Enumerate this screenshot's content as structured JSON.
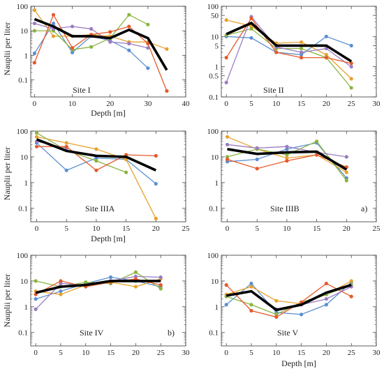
{
  "series_colors": [
    "#5b8fd1",
    "#e9a02c",
    "#8bb43f",
    "#9a7cc2",
    "#e55a2b"
  ],
  "mean_color": "#000000",
  "chart_data": [
    {
      "type": "line",
      "label": "Site I",
      "panel_tag": "",
      "xlabel": "Depth  [m]",
      "ylabel": "Nauplii  per liter",
      "yscale": "log",
      "xlim": [
        -1,
        40
      ],
      "ylim": [
        0.02,
        100
      ],
      "xticks": [
        "0",
        "10",
        "20",
        "30",
        "40"
      ],
      "yticks": [
        "0.1",
        "1",
        "10",
        "100"
      ],
      "series": [
        {
          "x": [
            0,
            5,
            10,
            15,
            20,
            25,
            30
          ],
          "y": [
            1.2,
            20,
            1.3,
            6,
            4,
            1.6,
            0.3
          ]
        },
        {
          "x": [
            0,
            5,
            10,
            15,
            20,
            25,
            30,
            35
          ],
          "y": [
            70,
            6,
            6,
            7,
            6,
            3.5,
            3.5,
            1.8
          ]
        },
        {
          "x": [
            0,
            5,
            10,
            15,
            20,
            25,
            30
          ],
          "y": [
            10,
            10,
            1.7,
            2.2,
            5,
            45,
            18
          ]
        },
        {
          "x": [
            0,
            5,
            10,
            15,
            20,
            25,
            30
          ],
          "y": [
            20,
            12,
            15,
            12,
            3.5,
            3,
            2
          ]
        },
        {
          "x": [
            0,
            5,
            10,
            15,
            20,
            25,
            30,
            35
          ],
          "y": [
            0.5,
            45,
            2,
            7,
            9,
            15,
            3,
            0.035
          ]
        }
      ],
      "mean": {
        "x": [
          0,
          5,
          10,
          15,
          20,
          25,
          30,
          35
        ],
        "y": [
          30,
          15,
          6,
          6,
          5,
          11,
          5,
          0.25
        ]
      }
    },
    {
      "type": "line",
      "label": "Site II",
      "panel_tag": "",
      "xlabel": "",
      "ylabel": "",
      "yscale": "log",
      "xlim": [
        -1,
        30
      ],
      "ylim": [
        0.1,
        100
      ],
      "xticks": [
        "0",
        "5",
        "10",
        "15",
        "20",
        "25",
        "30"
      ],
      "yticks": [
        "0.1",
        "0.5",
        "1",
        "5",
        "10",
        "50",
        "100"
      ],
      "series": [
        {
          "x": [
            0,
            5,
            10,
            15,
            20,
            25
          ],
          "y": [
            10,
            9,
            3,
            2.5,
            10,
            5
          ]
        },
        {
          "x": [
            0,
            5,
            10,
            15,
            20,
            25
          ],
          "y": [
            35,
            22,
            6,
            6.5,
            2.5,
            0.4
          ]
        },
        {
          "x": [
            0,
            5,
            10,
            15,
            20,
            25
          ],
          "y": [
            11,
            18,
            4,
            4,
            2,
            0.2
          ]
        },
        {
          "x": [
            0,
            5,
            10,
            15,
            20,
            25
          ],
          "y": [
            0.3,
            45,
            4.5,
            3,
            4,
            1
          ]
        },
        {
          "x": [
            0,
            5,
            10,
            15,
            20,
            25
          ],
          "y": [
            2,
            40,
            3,
            2,
            2,
            1.3
          ]
        }
      ],
      "mean": {
        "x": [
          0,
          5,
          10,
          15,
          20,
          25
        ],
        "y": [
          12,
          28,
          5,
          5,
          5,
          1.5
        ]
      }
    },
    {
      "type": "line",
      "label": "Site IIIA",
      "panel_tag": "",
      "xlabel": "Depth  [m]",
      "ylabel": "Nauplii  per liter",
      "yscale": "log",
      "xlim": [
        -1,
        25
      ],
      "ylim": [
        0.03,
        100
      ],
      "xticks": [
        "0",
        "5",
        "10",
        "15",
        "20",
        "25"
      ],
      "yticks": [
        "0.1",
        "1",
        "10",
        "100"
      ],
      "series": [
        {
          "x": [
            0,
            5,
            10,
            15,
            20
          ],
          "y": [
            35,
            3,
            9,
            8,
            0.9
          ]
        },
        {
          "x": [
            0,
            5,
            10,
            15,
            20
          ],
          "y": [
            60,
            35,
            20,
            8,
            0.04
          ]
        },
        {
          "x": [
            0,
            5,
            10,
            15
          ],
          "y": [
            85,
            18,
            7,
            2.5
          ]
        },
        {
          "x": [
            0,
            5
          ],
          "y": [
            40,
            22
          ]
        },
        {
          "x": [
            0,
            5,
            10,
            15,
            20
          ],
          "y": [
            25,
            25,
            3,
            12,
            11
          ]
        }
      ],
      "mean": {
        "x": [
          0,
          5,
          10,
          15,
          20
        ],
        "y": [
          48,
          17,
          11,
          10,
          3
        ]
      }
    },
    {
      "type": "line",
      "label": "Site IIIB",
      "panel_tag": "a)",
      "xlabel": "",
      "ylabel": "",
      "yscale": "log",
      "xlim": [
        -1,
        25
      ],
      "ylim": [
        0.03,
        100
      ],
      "xticks": [
        "0",
        "5",
        "10",
        "15",
        "20",
        "25"
      ],
      "yticks": [
        "0.1",
        "1",
        "10",
        "100"
      ],
      "series": [
        {
          "x": [
            0,
            5,
            10,
            15,
            20
          ],
          "y": [
            6.5,
            8,
            20,
            35,
            1.5
          ]
        },
        {
          "x": [
            0,
            5,
            10,
            15,
            20
          ],
          "y": [
            60,
            20,
            9,
            12,
            2.5
          ]
        },
        {
          "x": [
            0,
            5,
            10,
            15,
            20
          ],
          "y": [
            10,
            20,
            12,
            40,
            1.2
          ]
        },
        {
          "x": [
            0,
            5,
            10,
            15,
            20
          ],
          "y": [
            30,
            22,
            25,
            15,
            10
          ]
        },
        {
          "x": [
            0,
            5,
            10,
            15,
            20
          ],
          "y": [
            8,
            3.5,
            7,
            12,
            4
          ]
        }
      ],
      "mean": {
        "x": [
          0,
          5,
          10,
          15,
          20
        ],
        "y": [
          20,
          13,
          15,
          16,
          3.2
        ]
      }
    },
    {
      "type": "line",
      "label": "Site IV",
      "panel_tag": "b)",
      "xlabel": "",
      "ylabel": "Nauplii  per liter",
      "yscale": "log",
      "xlim": [
        -1,
        30
      ],
      "ylim": [
        0.03,
        100
      ],
      "xticks": [
        "0",
        "5",
        "10",
        "15",
        "20",
        "25",
        "30"
      ],
      "yticks": [
        "0.1",
        "1",
        "10",
        "100"
      ],
      "series": [
        {
          "x": [
            0,
            5,
            10,
            15,
            20,
            25
          ],
          "y": [
            2,
            4,
            8,
            14,
            10,
            6
          ]
        },
        {
          "x": [
            0,
            5,
            10,
            15,
            20,
            25
          ],
          "y": [
            4,
            3,
            7,
            9,
            6,
            12
          ]
        },
        {
          "x": [
            0,
            5,
            10,
            15,
            20,
            25
          ],
          "y": [
            10,
            6,
            9,
            8,
            22,
            5
          ]
        },
        {
          "x": [
            0,
            5,
            10,
            15,
            20,
            25
          ],
          "y": [
            0.8,
            8,
            7,
            10,
            15,
            14
          ]
        },
        {
          "x": [
            0,
            5,
            10,
            15,
            20,
            25
          ],
          "y": [
            3,
            10,
            6,
            9,
            12,
            7
          ]
        }
      ],
      "mean": {
        "x": [
          0,
          5,
          10,
          15,
          20,
          25
        ],
        "y": [
          3.5,
          6,
          7,
          10,
          10,
          10
        ]
      }
    },
    {
      "type": "line",
      "label": "Site V",
      "panel_tag": "",
      "xlabel": "Depth  [m]",
      "ylabel": "",
      "yscale": "log",
      "xlim": [
        -1,
        30
      ],
      "ylim": [
        0.03,
        100
      ],
      "xticks": [
        "0",
        "5",
        "10",
        "15",
        "20",
        "25",
        "30"
      ],
      "yticks": [
        "0.1",
        "1",
        "10",
        "100"
      ],
      "series": [
        {
          "x": [
            0,
            5,
            10,
            15,
            20,
            25
          ],
          "y": [
            1.2,
            8,
            0.6,
            0.5,
            1.2,
            9
          ]
        },
        {
          "x": [
            0,
            5,
            10,
            15,
            20,
            25
          ],
          "y": [
            3,
            6,
            1.7,
            1.3,
            3,
            10
          ]
        },
        {
          "x": [
            0,
            5,
            10,
            15,
            20,
            25
          ],
          "y": [
            2.5,
            1.2,
            0.5,
            1.5,
            3,
            7
          ]
        },
        {
          "x": [
            10,
            15,
            20,
            25
          ],
          "y": [
            0.8,
            1.2,
            2,
            6
          ]
        },
        {
          "x": [
            0,
            5,
            10,
            15,
            20,
            25
          ],
          "y": [
            7,
            0.7,
            0.4,
            1.5,
            8,
            2.5
          ]
        }
      ],
      "mean": {
        "x": [
          0,
          5,
          10,
          15,
          20,
          25
        ],
        "y": [
          2.7,
          4,
          0.75,
          1.2,
          3.5,
          7
        ]
      }
    }
  ]
}
